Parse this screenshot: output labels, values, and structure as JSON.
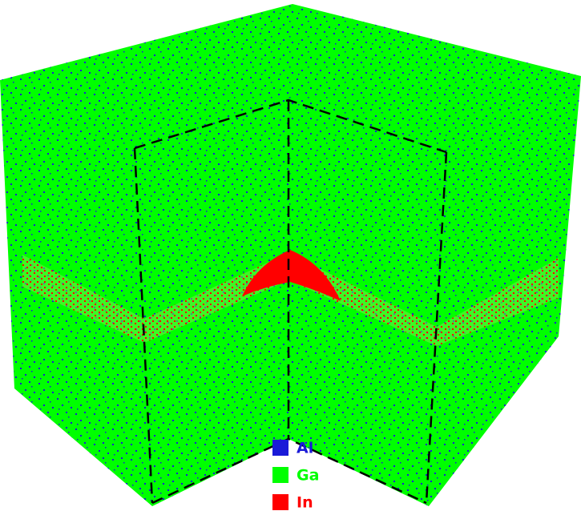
{
  "legend": {
    "items": [
      {
        "label": "Al",
        "color": "#1a1ad8"
      },
      {
        "label": "Ga",
        "color": "#00ff00"
      },
      {
        "label": "In",
        "color": "#ff0000"
      }
    ]
  }
}
